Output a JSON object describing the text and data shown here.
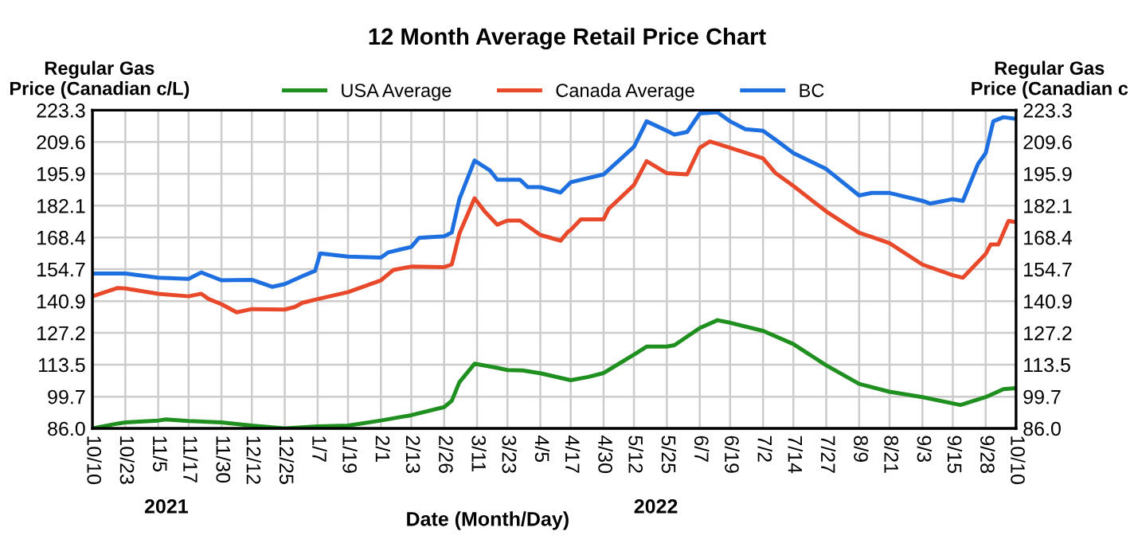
{
  "chart_data": {
    "type": "line",
    "title": "12 Month Average Retail Price Chart",
    "ylabel": "Regular Gas\nPrice (Canadian c/L)",
    "y2label": "Regular Gas\nPrice (Canadian c",
    "xlabel": "Date (Month/Day)",
    "annotations": [
      "2021",
      "2022"
    ],
    "xlim": [
      "2021-10-10",
      "2022-10-10"
    ],
    "xticks": [
      {
        "value": "2021-10-10",
        "label": "10/10"
      },
      {
        "value": "2021-10-23",
        "label": "10/23"
      },
      {
        "value": "2021-11-05",
        "label": "11/5"
      },
      {
        "value": "2021-11-17",
        "label": "11/17"
      },
      {
        "value": "2021-11-30",
        "label": "11/30"
      },
      {
        "value": "2021-12-12",
        "label": "12/12"
      },
      {
        "value": "2021-12-25",
        "label": "12/25"
      },
      {
        "value": "2022-01-07",
        "label": "1/7"
      },
      {
        "value": "2022-01-19",
        "label": "1/19"
      },
      {
        "value": "2022-02-01",
        "label": "2/1"
      },
      {
        "value": "2022-02-13",
        "label": "2/13"
      },
      {
        "value": "2022-02-26",
        "label": "2/26"
      },
      {
        "value": "2022-03-11",
        "label": "3/11"
      },
      {
        "value": "2022-03-23",
        "label": "3/23"
      },
      {
        "value": "2022-04-05",
        "label": "4/5"
      },
      {
        "value": "2022-04-17",
        "label": "4/17"
      },
      {
        "value": "2022-04-30",
        "label": "4/30"
      },
      {
        "value": "2022-05-12",
        "label": "5/12"
      },
      {
        "value": "2022-05-25",
        "label": "5/25"
      },
      {
        "value": "2022-06-07",
        "label": "6/7"
      },
      {
        "value": "2022-06-19",
        "label": "6/19"
      },
      {
        "value": "2022-07-02",
        "label": "7/2"
      },
      {
        "value": "2022-07-14",
        "label": "7/14"
      },
      {
        "value": "2022-07-27",
        "label": "7/27"
      },
      {
        "value": "2022-08-09",
        "label": "8/9"
      },
      {
        "value": "2022-08-21",
        "label": "8/21"
      },
      {
        "value": "2022-09-03",
        "label": "9/3"
      },
      {
        "value": "2022-09-15",
        "label": "9/15"
      },
      {
        "value": "2022-09-28",
        "label": "9/28"
      },
      {
        "value": "2022-10-10",
        "label": "10/10"
      }
    ],
    "ylim": [
      86.0,
      223.3
    ],
    "yticks": [
      {
        "value": 86.0,
        "label": "86.0"
      },
      99.7,
      113.5,
      127.2,
      140.9,
      154.7,
      168.4,
      182.1,
      195.9,
      209.6,
      223.3
    ],
    "y2lim": [
      86.0,
      223.3
    ],
    "y2ticks": [
      {
        "value": 86.0,
        "label": "86.0"
      },
      99.7,
      113.5,
      127.2,
      140.9,
      154.7,
      168.4,
      182.1,
      195.9,
      209.6,
      223.3
    ],
    "grid": true,
    "legend": "top",
    "marker": "none",
    "line_style": "solid",
    "series": [
      {
        "name": "USA Average",
        "color": "#1f8f1f",
        "x": [
          "2021-10-10",
          "2021-10-20",
          "2021-10-23",
          "2021-11-05",
          "2021-11-08",
          "2021-11-17",
          "2021-11-30",
          "2021-12-12",
          "2021-12-25",
          "2022-01-07",
          "2022-01-19",
          "2022-02-01",
          "2022-02-13",
          "2022-02-26",
          "2022-03-01",
          "2022-03-04",
          "2022-03-10",
          "2022-03-19",
          "2022-03-23",
          "2022-03-29",
          "2022-04-05",
          "2022-04-17",
          "2022-04-24",
          "2022-04-30",
          "2022-05-12",
          "2022-05-17",
          "2022-05-25",
          "2022-05-28",
          "2022-06-07",
          "2022-06-14",
          "2022-06-19",
          "2022-07-02",
          "2022-07-14",
          "2022-07-27",
          "2022-08-09",
          "2022-08-21",
          "2022-09-03",
          "2022-09-15",
          "2022-09-18",
          "2022-09-28",
          "2022-10-05",
          "2022-10-10"
        ],
        "values": [
          86.0,
          88.1,
          88.6,
          89.4,
          89.9,
          89.2,
          88.6,
          87.2,
          86.0,
          86.9,
          87.2,
          89.4,
          91.7,
          95.2,
          97.9,
          105.9,
          113.9,
          112.1,
          111.2,
          111.0,
          109.8,
          106.8,
          108.2,
          109.9,
          117.8,
          121.3,
          121.3,
          121.9,
          129.3,
          132.7,
          131.6,
          128.1,
          122.4,
          113.2,
          105.2,
          101.8,
          99.5,
          96.8,
          96.1,
          99.5,
          102.9,
          103.4
        ]
      },
      {
        "name": "Canada Average",
        "color": "#e8492b",
        "x": [
          "2021-10-10",
          "2021-10-20",
          "2021-10-23",
          "2021-11-05",
          "2021-11-17",
          "2021-11-22",
          "2021-11-25",
          "2021-11-30",
          "2021-12-06",
          "2021-12-12",
          "2021-12-25",
          "2021-12-29",
          "2022-01-01",
          "2022-01-07",
          "2022-01-19",
          "2022-02-01",
          "2022-02-06",
          "2022-02-13",
          "2022-02-26",
          "2022-03-01",
          "2022-03-04",
          "2022-03-10",
          "2022-03-14",
          "2022-03-19",
          "2022-03-23",
          "2022-03-28",
          "2022-04-05",
          "2022-04-13",
          "2022-04-16",
          "2022-04-17",
          "2022-04-21",
          "2022-04-30",
          "2022-05-02",
          "2022-05-12",
          "2022-05-17",
          "2022-05-25",
          "2022-06-02",
          "2022-06-07",
          "2022-06-11",
          "2022-06-19",
          "2022-07-02",
          "2022-07-07",
          "2022-07-14",
          "2022-07-27",
          "2022-08-09",
          "2022-08-14",
          "2022-08-21",
          "2022-09-03",
          "2022-09-15",
          "2022-09-19",
          "2022-09-28",
          "2022-09-30",
          "2022-10-03",
          "2022-10-07",
          "2022-10-10"
        ],
        "values": [
          143.0,
          146.6,
          146.4,
          144.1,
          143.0,
          144.1,
          141.8,
          139.6,
          136.1,
          137.5,
          137.3,
          138.4,
          140.2,
          141.8,
          144.8,
          149.9,
          154.4,
          155.8,
          155.6,
          156.7,
          170.0,
          185.3,
          179.6,
          173.9,
          175.7,
          175.7,
          169.5,
          167.0,
          170.9,
          171.6,
          176.2,
          176.2,
          180.7,
          191.0,
          201.3,
          196.1,
          195.6,
          207.1,
          209.8,
          207.1,
          202.5,
          196.1,
          190.6,
          179.6,
          170.4,
          168.6,
          165.9,
          156.7,
          152.1,
          151.0,
          161.3,
          165.4,
          165.4,
          175.5,
          175.0
        ]
      },
      {
        "name": "BC",
        "color": "#1e6fe0",
        "x": [
          "2021-10-10",
          "2021-10-23",
          "2021-11-05",
          "2021-11-17",
          "2021-11-22",
          "2021-11-30",
          "2021-12-12",
          "2021-12-20",
          "2021-12-25",
          "2022-01-01",
          "2022-01-06",
          "2022-01-08",
          "2022-01-19",
          "2022-02-01",
          "2022-02-04",
          "2022-02-13",
          "2022-02-16",
          "2022-02-26",
          "2022-03-01",
          "2022-03-04",
          "2022-03-10",
          "2022-03-16",
          "2022-03-19",
          "2022-03-23",
          "2022-03-28",
          "2022-03-31",
          "2022-04-05",
          "2022-04-13",
          "2022-04-17",
          "2022-04-30",
          "2022-05-07",
          "2022-05-12",
          "2022-05-17",
          "2022-05-25",
          "2022-05-28",
          "2022-06-02",
          "2022-06-07",
          "2022-06-14",
          "2022-06-19",
          "2022-06-25",
          "2022-07-02",
          "2022-07-07",
          "2022-07-14",
          "2022-07-27",
          "2022-08-09",
          "2022-08-14",
          "2022-08-21",
          "2022-09-03",
          "2022-09-06",
          "2022-09-15",
          "2022-09-19",
          "2022-09-25",
          "2022-09-28",
          "2022-10-01",
          "2022-10-05",
          "2022-10-10"
        ],
        "values": [
          152.8,
          152.8,
          151.0,
          150.5,
          153.3,
          149.9,
          150.1,
          147.1,
          148.3,
          151.7,
          154.0,
          161.5,
          160.1,
          159.7,
          162.0,
          164.3,
          168.2,
          168.9,
          170.5,
          184.9,
          201.6,
          197.4,
          193.3,
          193.3,
          193.3,
          190.1,
          190.1,
          187.8,
          192.2,
          195.6,
          202.5,
          207.5,
          218.5,
          214.4,
          212.8,
          213.9,
          221.9,
          222.4,
          218.5,
          215.1,
          214.4,
          210.5,
          204.8,
          197.9,
          186.5,
          187.6,
          187.6,
          184.2,
          183.0,
          184.9,
          184.2,
          200.2,
          204.8,
          218.5,
          220.3,
          219.6
        ]
      }
    ]
  }
}
